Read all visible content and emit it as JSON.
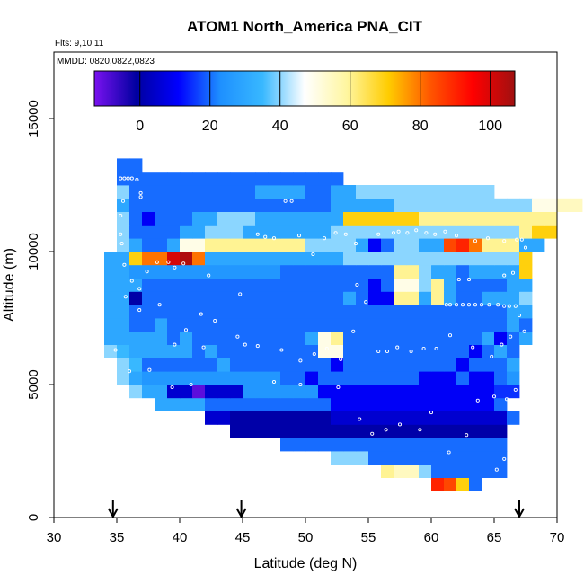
{
  "chart_data": {
    "type": "heatmap",
    "title": "ATOM1 North_America PNA_CIT",
    "annotations": [
      "Flts: 9,10,11",
      "MMDD: 0820,0822,0823"
    ],
    "xlabel": "Latitude (deg N)",
    "ylabel": "Altitude (m)",
    "xlim": [
      30,
      70
    ],
    "ylim": [
      0,
      17500
    ],
    "x_ticks": [
      30,
      35,
      40,
      45,
      50,
      55,
      60,
      65,
      70
    ],
    "y_ticks": [
      0,
      5000,
      10000,
      15000
    ],
    "colorbar": {
      "range": [
        -13,
        107
      ],
      "ticks": [
        0,
        20,
        40,
        60,
        80,
        100
      ],
      "colors": [
        "#7a12f0",
        "#0000a0",
        "#0000ff",
        "#1e90ff",
        "#38b8ff",
        "#ffffff",
        "#fff6a0",
        "#ffcc00",
        "#ff5500",
        "#ff0000",
        "#a01010"
      ],
      "legend_position": "top-inside"
    },
    "arrows_x": [
      34.7,
      44.9,
      67.0
    ],
    "cell_size": [
      1,
      500
    ],
    "rows": [
      {
        "y0": 1000,
        "x0": 60,
        "values": [
          90,
          85,
          70,
          20
        ]
      },
      {
        "y0": 1500,
        "x0": 56,
        "values": [
          60,
          55,
          55,
          40,
          20,
          20,
          20,
          20,
          20,
          20
        ]
      },
      {
        "y0": 2000,
        "x0": 52,
        "values": [
          40,
          40,
          40,
          20,
          20,
          20,
          20,
          20,
          20,
          20,
          20,
          20,
          20,
          20
        ]
      },
      {
        "y0": 2500,
        "x0": 48,
        "values": [
          20,
          20,
          20,
          20,
          20,
          20,
          20,
          20,
          20,
          20,
          20,
          20,
          20,
          20,
          20,
          20,
          20,
          20
        ]
      },
      {
        "y0": 3000,
        "x0": 44,
        "values": [
          0,
          0,
          0,
          0,
          0,
          0,
          0,
          0,
          0,
          0,
          0,
          0,
          0,
          0,
          0,
          0,
          0,
          0,
          0,
          0,
          0,
          0
        ]
      },
      {
        "y0": 3500,
        "x0": 42,
        "values": [
          5,
          5,
          0,
          0,
          0,
          0,
          0,
          0,
          0,
          0,
          5,
          5,
          5,
          5,
          5,
          5,
          5,
          5,
          5,
          5,
          5,
          5,
          5,
          5,
          20
        ]
      },
      {
        "y0": 4000,
        "x0": 38,
        "values": [
          30,
          30,
          30,
          30,
          20,
          20,
          20,
          20,
          20,
          20,
          20,
          20,
          20,
          20,
          10,
          10,
          10,
          10,
          10,
          10,
          10,
          10,
          10,
          10,
          10,
          10,
          10,
          20
        ]
      },
      {
        "y0": 4500,
        "x0": 36,
        "values": [
          40,
          30,
          30,
          5,
          5,
          -10,
          5,
          5,
          5,
          25,
          25,
          25,
          25,
          25,
          25,
          10,
          10,
          10,
          10,
          10,
          10,
          10,
          10,
          10,
          10,
          10,
          10,
          10,
          10,
          15,
          15
        ]
      },
      {
        "y0": 5000,
        "x0": 35,
        "values": [
          40,
          30,
          25,
          25,
          25,
          25,
          25,
          25,
          25,
          25,
          25,
          25,
          25,
          20,
          20,
          10,
          20,
          20,
          20,
          20,
          20,
          20,
          20,
          20,
          10,
          10,
          10,
          20,
          10,
          10,
          20,
          25
        ]
      },
      {
        "y0": 5500,
        "x0": 35,
        "values": [
          40,
          35,
          20,
          20,
          20,
          20,
          20,
          20,
          30,
          20,
          20,
          20,
          20,
          20,
          20,
          20,
          20,
          10,
          20,
          20,
          20,
          20,
          20,
          20,
          20,
          20,
          20,
          10,
          20,
          20,
          20,
          30
        ]
      },
      {
        "y0": 6000,
        "x0": 34,
        "values": [
          40,
          35,
          30,
          30,
          30,
          30,
          30,
          20,
          30,
          20,
          20,
          20,
          20,
          20,
          20,
          20,
          20,
          50,
          50,
          20,
          20,
          20,
          20,
          20,
          20,
          20,
          20,
          20,
          20,
          10,
          20,
          30,
          20
        ]
      },
      {
        "y0": 6500,
        "x0": 34,
        "values": [
          30,
          30,
          30,
          30,
          30,
          20,
          30,
          20,
          20,
          20,
          20,
          20,
          20,
          20,
          20,
          20,
          30,
          50,
          60,
          20,
          20,
          20,
          20,
          20,
          20,
          20,
          20,
          20,
          20,
          20,
          30,
          10,
          20,
          30
        ]
      },
      {
        "y0": 7000,
        "x0": 34,
        "values": [
          30,
          30,
          20,
          20,
          30,
          20,
          20,
          20,
          20,
          20,
          20,
          20,
          20,
          20,
          20,
          20,
          20,
          20,
          20,
          20,
          20,
          20,
          20,
          20,
          20,
          20,
          20,
          20,
          20,
          20,
          20,
          20,
          30,
          20
        ]
      },
      {
        "y0": 7500,
        "x0": 34,
        "values": [
          30,
          30,
          20,
          20,
          20,
          20,
          20,
          20,
          20,
          20,
          20,
          20,
          20,
          20,
          20,
          20,
          20,
          20,
          20,
          20,
          20,
          20,
          20,
          20,
          20,
          20,
          20,
          20,
          20,
          20,
          20,
          20,
          30,
          30
        ]
      },
      {
        "y0": 8000,
        "x0": 34,
        "values": [
          30,
          30,
          0,
          20,
          20,
          20,
          20,
          20,
          20,
          20,
          20,
          20,
          20,
          20,
          20,
          20,
          20,
          20,
          20,
          30,
          20,
          10,
          10,
          60,
          60,
          30,
          60,
          30,
          20,
          20,
          30,
          30,
          30,
          40
        ]
      },
      {
        "y0": 8500,
        "x0": 34,
        "values": [
          30,
          30,
          30,
          20,
          20,
          20,
          20,
          20,
          20,
          20,
          20,
          20,
          20,
          20,
          20,
          20,
          20,
          20,
          20,
          20,
          20,
          10,
          20,
          50,
          50,
          40,
          60,
          30,
          20,
          20,
          20,
          20,
          30,
          30
        ]
      },
      {
        "y0": 9000,
        "x0": 34,
        "values": [
          30,
          30,
          25,
          25,
          25,
          25,
          25,
          25,
          25,
          25,
          25,
          25,
          25,
          25,
          20,
          20,
          20,
          20,
          20,
          20,
          20,
          20,
          20,
          60,
          60,
          40,
          30,
          30,
          20,
          30,
          30,
          30,
          30,
          70
        ]
      },
      {
        "y0": 9500,
        "x0": 34,
        "values": [
          30,
          30,
          70,
          80,
          80,
          100,
          105,
          80,
          30,
          30,
          30,
          30,
          30,
          30,
          30,
          30,
          30,
          30,
          30,
          40,
          40,
          40,
          40,
          40,
          40,
          40,
          40,
          40,
          40,
          40,
          40,
          40,
          40,
          70
        ]
      },
      {
        "y0": 10000,
        "x0": 35,
        "values": [
          40,
          30,
          20,
          20,
          30,
          50,
          50,
          60,
          60,
          60,
          60,
          60,
          60,
          60,
          60,
          40,
          40,
          40,
          40,
          30,
          10,
          20,
          40,
          40,
          30,
          30,
          85,
          90,
          80,
          60,
          60,
          60,
          30,
          30
        ]
      },
      {
        "y0": 10500,
        "x0": 35,
        "values": [
          40,
          20,
          20,
          20,
          20,
          30,
          30,
          40,
          40,
          40,
          30,
          30,
          30,
          30,
          30,
          30,
          30,
          40,
          40,
          40,
          40,
          40,
          40,
          40,
          40,
          40,
          40,
          40,
          40,
          40,
          40,
          40,
          60,
          70,
          70
        ]
      },
      {
        "y0": 11000,
        "x0": 35,
        "values": [
          40,
          20,
          10,
          20,
          20,
          20,
          30,
          30,
          40,
          40,
          40,
          30,
          30,
          30,
          30,
          30,
          30,
          30,
          70,
          70,
          70,
          70,
          70,
          70,
          60,
          60,
          60,
          60,
          60,
          60,
          60,
          60,
          60,
          60,
          60
        ]
      },
      {
        "y0": 11500,
        "x0": 35,
        "values": [
          30,
          20,
          20,
          20,
          20,
          20,
          20,
          20,
          20,
          20,
          20,
          20,
          20,
          20,
          20,
          20,
          20,
          30,
          30,
          30,
          30,
          30,
          40,
          40,
          40,
          40,
          40,
          40,
          40,
          40,
          40,
          40,
          40,
          50,
          50,
          55,
          55
        ]
      },
      {
        "y0": 12000,
        "x0": 35,
        "values": [
          40,
          20,
          20,
          20,
          20,
          20,
          20,
          20,
          20,
          20,
          20,
          30,
          30,
          30,
          30,
          20,
          20,
          30,
          30,
          40,
          40,
          40,
          40,
          40,
          40,
          40,
          40,
          40,
          40,
          40
        ]
      },
      {
        "y0": 12500,
        "x0": 35,
        "values": [
          20,
          20,
          20,
          20,
          20,
          20,
          20,
          20,
          20,
          20,
          20,
          20,
          20,
          20,
          20,
          20,
          20,
          20
        ]
      },
      {
        "y0": 13000,
        "x0": 35,
        "values": [
          20,
          20
        ]
      }
    ],
    "points": [
      [
        35.3,
        12750
      ],
      [
        35.6,
        12750
      ],
      [
        35.9,
        12750
      ],
      [
        36.2,
        12750
      ],
      [
        36.6,
        12700
      ],
      [
        36.9,
        12200
      ],
      [
        36.9,
        12050
      ],
      [
        35.5,
        11900
      ],
      [
        35.3,
        11350
      ],
      [
        35.3,
        10650
      ],
      [
        35.4,
        10300
      ],
      [
        35.6,
        9500
      ],
      [
        36.2,
        8900
      ],
      [
        36.8,
        8600
      ],
      [
        37.4,
        9250
      ],
      [
        38.2,
        9600
      ],
      [
        39.1,
        9600
      ],
      [
        39.6,
        9400
      ],
      [
        40.3,
        9550
      ],
      [
        42.3,
        9100
      ],
      [
        44.8,
        8400
      ],
      [
        46.2,
        10650
      ],
      [
        46.8,
        10550
      ],
      [
        47.5,
        10500
      ],
      [
        48.4,
        11900
      ],
      [
        48.9,
        11900
      ],
      [
        49.5,
        10600
      ],
      [
        50.6,
        9900
      ],
      [
        51.5,
        10500
      ],
      [
        52.4,
        10700
      ],
      [
        53.2,
        10650
      ],
      [
        54.0,
        10300
      ],
      [
        55.8,
        10650
      ],
      [
        57.0,
        10700
      ],
      [
        57.4,
        10750
      ],
      [
        58.1,
        10700
      ],
      [
        58.8,
        10800
      ],
      [
        59.6,
        10700
      ],
      [
        60.3,
        10650
      ],
      [
        61.1,
        10750
      ],
      [
        62.0,
        10600
      ],
      [
        63.5,
        10400
      ],
      [
        64.5,
        10500
      ],
      [
        65.8,
        10400
      ],
      [
        66.8,
        10450
      ],
      [
        67.2,
        10450
      ],
      [
        67.5,
        10150
      ],
      [
        66.5,
        9200
      ],
      [
        65.8,
        9100
      ],
      [
        63.0,
        8950
      ],
      [
        62.2,
        8950
      ],
      [
        61.2,
        8000
      ],
      [
        61.5,
        8000
      ],
      [
        62.0,
        8000
      ],
      [
        62.5,
        8000
      ],
      [
        63.0,
        8000
      ],
      [
        63.5,
        8000
      ],
      [
        64.0,
        8000
      ],
      [
        64.6,
        8000
      ],
      [
        65.3,
        8000
      ],
      [
        65.8,
        7950
      ],
      [
        66.2,
        7950
      ],
      [
        66.7,
        7950
      ],
      [
        67.0,
        7600
      ],
      [
        67.4,
        7000
      ],
      [
        66.3,
        6800
      ],
      [
        65.6,
        6500
      ],
      [
        64.8,
        6050
      ],
      [
        63.3,
        6400
      ],
      [
        61.5,
        6850
      ],
      [
        60.4,
        6350
      ],
      [
        59.4,
        6350
      ],
      [
        58.4,
        6250
      ],
      [
        57.3,
        6400
      ],
      [
        56.5,
        6250
      ],
      [
        55.8,
        6250
      ],
      [
        54.8,
        8100
      ],
      [
        54.1,
        8750
      ],
      [
        53.8,
        7000
      ],
      [
        52.8,
        5950
      ],
      [
        51.7,
        6350
      ],
      [
        50.7,
        6150
      ],
      [
        49.6,
        5900
      ],
      [
        48.1,
        6300
      ],
      [
        46.2,
        6450
      ],
      [
        45.2,
        6500
      ],
      [
        44.6,
        6800
      ],
      [
        42.8,
        7400
      ],
      [
        41.9,
        6400
      ],
      [
        40.9,
        5000
      ],
      [
        39.4,
        4900
      ],
      [
        37.6,
        5550
      ],
      [
        36.0,
        5500
      ],
      [
        34.9,
        6300
      ],
      [
        35.7,
        8300
      ],
      [
        36.8,
        7800
      ],
      [
        38.4,
        8000
      ],
      [
        39.6,
        6500
      ],
      [
        40.5,
        7050
      ],
      [
        41.7,
        7650
      ],
      [
        47.5,
        5100
      ],
      [
        49.6,
        5000
      ],
      [
        52.6,
        4900
      ],
      [
        54.3,
        3700
      ],
      [
        55.3,
        3150
      ],
      [
        56.4,
        3300
      ],
      [
        57.5,
        3500
      ],
      [
        59.1,
        3300
      ],
      [
        60.0,
        3950
      ],
      [
        61.4,
        2450
      ],
      [
        62.8,
        3100
      ],
      [
        63.7,
        4400
      ],
      [
        65.0,
        4550
      ],
      [
        66.0,
        4450
      ],
      [
        66.7,
        4800
      ],
      [
        67.0,
        4100
      ],
      [
        66.9,
        3100
      ],
      [
        66.5,
        2700
      ],
      [
        65.8,
        2200
      ],
      [
        65.2,
        1800
      ],
      [
        65.0,
        1250
      ],
      [
        64.8,
        870
      ],
      [
        64.5,
        700
      ],
      [
        64.3,
        550
      ]
    ]
  }
}
